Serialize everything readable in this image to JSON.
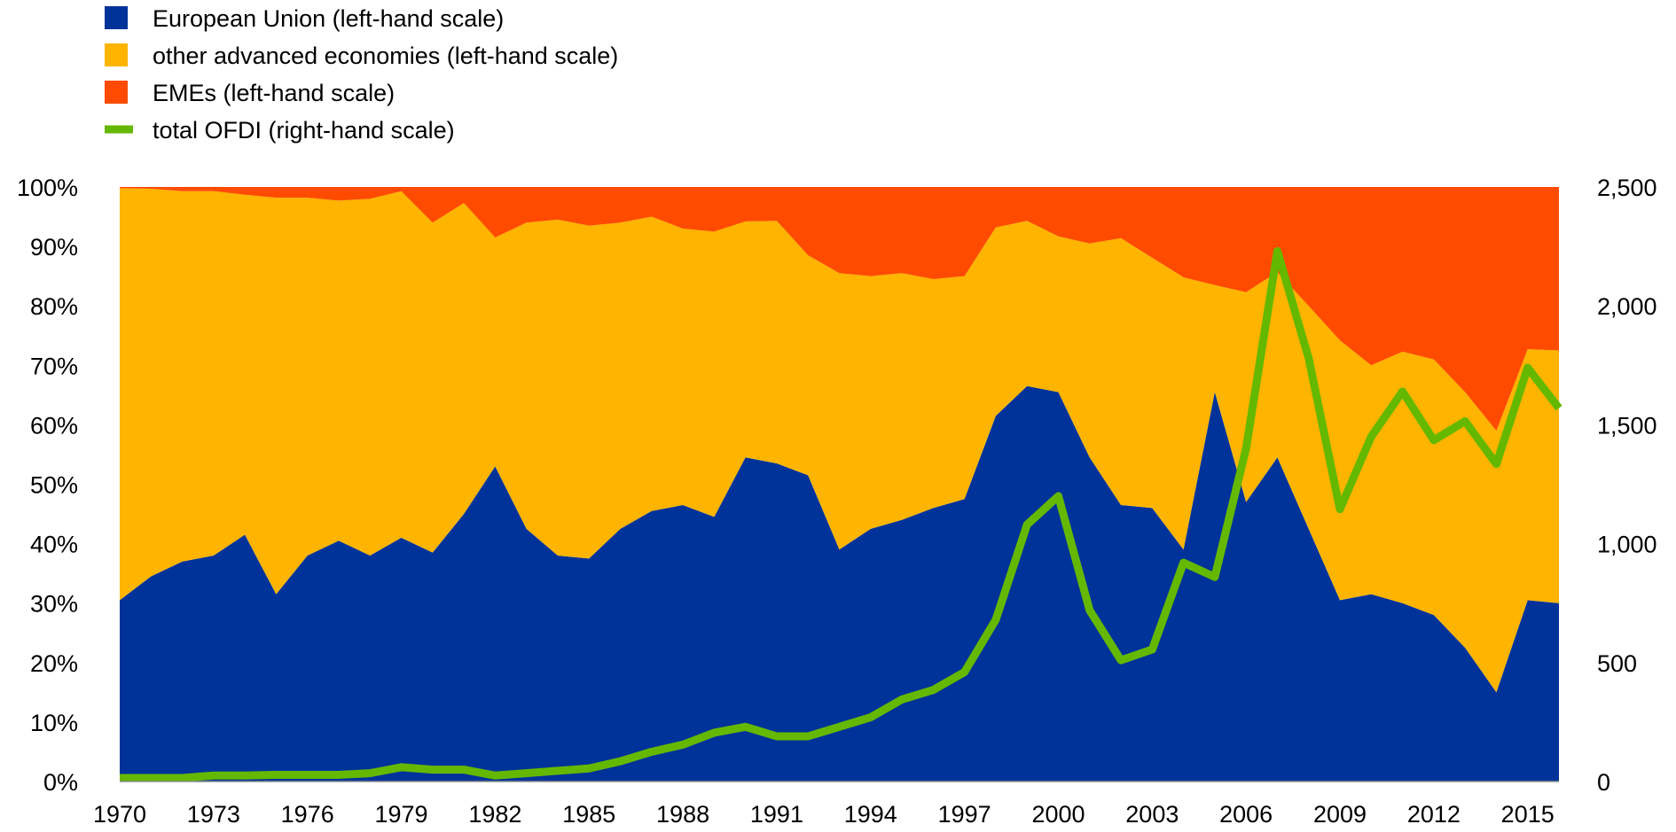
{
  "chart_data": {
    "type": "area",
    "stacked_percent": true,
    "x": [
      1970,
      1971,
      1972,
      1973,
      1974,
      1975,
      1976,
      1977,
      1978,
      1979,
      1980,
      1981,
      1982,
      1983,
      1984,
      1985,
      1986,
      1987,
      1988,
      1989,
      1990,
      1991,
      1992,
      1993,
      1994,
      1995,
      1996,
      1997,
      1998,
      1999,
      2000,
      2001,
      2002,
      2003,
      2004,
      2005,
      2006,
      2007,
      2008,
      2009,
      2010,
      2011,
      2012,
      2013,
      2014,
      2015,
      2016
    ],
    "x_tick_labels": [
      "1970",
      "1973",
      "1976",
      "1979",
      "1982",
      "1985",
      "1988",
      "1991",
      "1994",
      "1997",
      "2000",
      "2003",
      "2006",
      "2009",
      "2012",
      "2015"
    ],
    "y_left_range": [
      0,
      100
    ],
    "y_left_ticks": [
      "0%",
      "10%",
      "20%",
      "30%",
      "40%",
      "50%",
      "60%",
      "70%",
      "80%",
      "90%",
      "100%"
    ],
    "y_right_range": [
      0,
      2500
    ],
    "y_right_ticks": [
      "0",
      "500",
      "1,000",
      "1,500",
      "2,000",
      "2,500"
    ],
    "series": [
      {
        "name": "European Union (left-hand scale)",
        "kind": "area",
        "axis": "left",
        "color": "#003399",
        "values": [
          30.5,
          34.5,
          37,
          38,
          41.5,
          31.5,
          38,
          40.5,
          38,
          41,
          38.5,
          45,
          53,
          42.5,
          38,
          37.5,
          42.5,
          45.5,
          46.5,
          44.5,
          54.5,
          53.5,
          51.5,
          39,
          42.5,
          44,
          46,
          47.5,
          61.5,
          66.5,
          65.5,
          54.5,
          46.5,
          46,
          39,
          65.5,
          47,
          54.5,
          42.5,
          30.5,
          31.5,
          30,
          28,
          22.5,
          15,
          30.5,
          30
        ]
      },
      {
        "name": "other advanced economies (left-hand scale)",
        "kind": "area",
        "axis": "left",
        "color": "#FFB400",
        "values": [
          69.3,
          65.2,
          62.3,
          61.3,
          57.2,
          66.7,
          60.2,
          57.2,
          60,
          58.3,
          55.5,
          52.3,
          38.5,
          51.5,
          56.5,
          56,
          51.5,
          49.5,
          46.5,
          48,
          39.7,
          40.8,
          37,
          46.5,
          42.5,
          41.5,
          38.5,
          37.5,
          31.7,
          27.8,
          26.2,
          36,
          44.9,
          42.1,
          45.8,
          18,
          35.3,
          31.2,
          37.5,
          43.7,
          38.5,
          42.3,
          43,
          43,
          44,
          42.2,
          42.5
        ]
      },
      {
        "name": "EMEs (left-hand scale)",
        "kind": "area",
        "axis": "left",
        "color": "#FF4B00",
        "values": [
          0.2,
          0.3,
          0.7,
          0.7,
          1.3,
          1.8,
          1.8,
          2.3,
          2,
          0.7,
          6,
          2.7,
          8.5,
          6,
          5.5,
          6.5,
          6,
          5,
          7,
          7.5,
          5.8,
          5.7,
          11.5,
          14.5,
          15,
          14.5,
          15.5,
          15,
          6.8,
          5.7,
          8.3,
          9.5,
          8.6,
          11.9,
          15.2,
          16.5,
          17.7,
          14.3,
          20,
          25.8,
          30,
          27.7,
          29,
          34.5,
          41,
          27.3,
          27.5
        ]
      },
      {
        "name": "total OFDI (right-hand scale)",
        "kind": "line",
        "axis": "right",
        "color": "#65B800",
        "values": [
          15,
          15,
          15,
          25,
          25,
          28,
          28,
          28,
          35,
          60,
          50,
          50,
          25,
          35,
          45,
          55,
          85,
          125,
          155,
          205,
          230,
          190,
          190,
          230,
          270,
          345,
          385,
          460,
          680,
          1080,
          1200,
          720,
          510,
          555,
          920,
          860,
          1400,
          2230,
          1780,
          1145,
          1450,
          1640,
          1435,
          1515,
          1335,
          1740,
          1570
        ]
      }
    ],
    "legend_position": "top-left",
    "grid": false
  }
}
